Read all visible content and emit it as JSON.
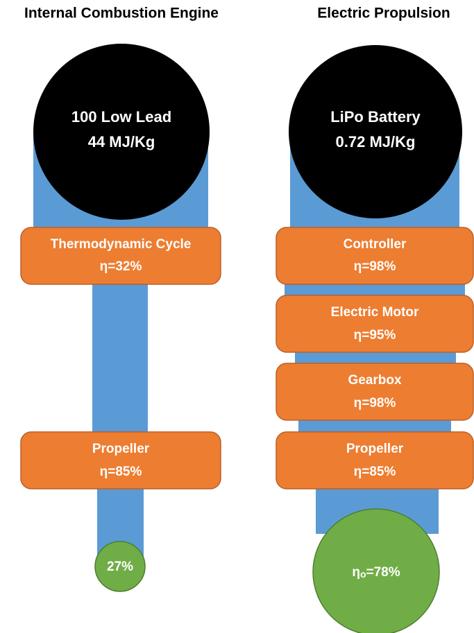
{
  "columns": [
    {
      "title": "Internal Combustion Engine",
      "source": {
        "name": "100 Low Lead",
        "energy": "44 MJ/Kg"
      },
      "stages": [
        {
          "name": "Thermodynamic Cycle",
          "efficiency": "η=32%"
        },
        {
          "name": "Propeller",
          "efficiency": "η=85%"
        }
      ],
      "result": {
        "text": "27%"
      }
    },
    {
      "title": "Electric Propulsion",
      "source": {
        "name": "LiPo Battery",
        "energy": "0.72 MJ/Kg"
      },
      "stages": [
        {
          "name": "Controller",
          "efficiency": "η=98%"
        },
        {
          "name": "Electric Motor",
          "efficiency": "η=95%"
        },
        {
          "name": "Gearbox",
          "efficiency": "η=98%"
        },
        {
          "name": "Propeller",
          "efficiency": "η=85%"
        }
      ],
      "result": {
        "symbol": "η",
        "subscript": "o",
        "text": "=78%"
      }
    }
  ]
}
